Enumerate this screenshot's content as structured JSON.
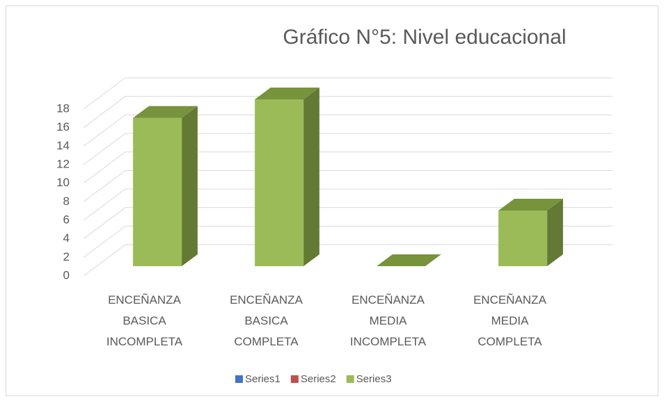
{
  "chart_data": {
    "type": "bar3d",
    "title": "Gráfico N°5: Nivel educacional",
    "categories": [
      "ENCEÑANZA BASICA INCOMPLETA",
      "ENCEÑANZA BASICA COMPLETA",
      "ENCEÑANZA MEDIA INCOMPLETA",
      "ENCEÑANZA MEDIA COMPLETA"
    ],
    "series": [
      {
        "name": "Series1",
        "color": "#4472c4",
        "values": [
          null,
          null,
          null,
          null
        ]
      },
      {
        "name": "Series2",
        "color": "#c0504d",
        "values": [
          null,
          null,
          null,
          null
        ]
      },
      {
        "name": "Series3",
        "color": "#9bbb59",
        "values": [
          16,
          18,
          0,
          6
        ]
      }
    ],
    "ylim": [
      0,
      18
    ],
    "yticks": [
      0,
      2,
      4,
      6,
      8,
      10,
      12,
      14,
      16,
      18
    ],
    "grid": true,
    "legend": "bottom"
  }
}
